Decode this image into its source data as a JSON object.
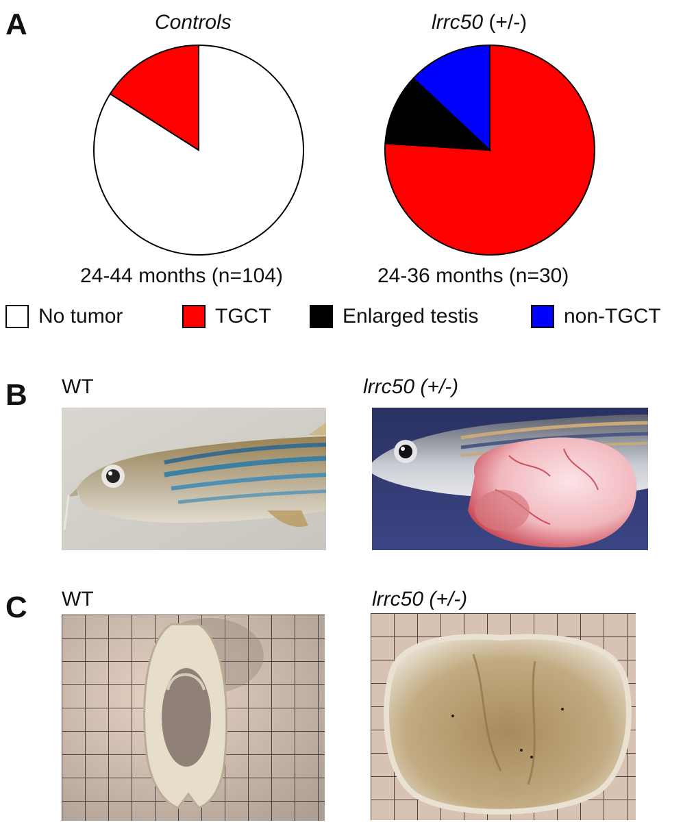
{
  "panels": {
    "a_letter": "A",
    "b_letter": "B",
    "c_letter": "C"
  },
  "chart_data": [
    {
      "type": "pie",
      "title": "Controls",
      "caption": "24-44 months (n=104)",
      "slices": [
        {
          "label": "No tumor",
          "value": 84,
          "color": "#ffffff"
        },
        {
          "label": "TGCT",
          "value": 16,
          "color": "#ff0000"
        }
      ]
    },
    {
      "type": "pie",
      "title_italic": "lrrc50",
      "title_rest": " (+/-)",
      "caption": "24-36 months (n=30)",
      "slices": [
        {
          "label": "TGCT",
          "value": 76,
          "color": "#ff0000"
        },
        {
          "label": "Enlarged testis",
          "value": 11,
          "color": "#000000"
        },
        {
          "label": "non-TGCT",
          "value": 13,
          "color": "#0000ff"
        }
      ]
    }
  ],
  "legend": [
    {
      "label": "No tumor",
      "color": "#ffffff"
    },
    {
      "label": "TGCT",
      "color": "#ff0000"
    },
    {
      "label": "Enlarged testis",
      "color": "#000000"
    },
    {
      "label": "non-TGCT",
      "color": "#0000ff"
    }
  ],
  "panel_b": {
    "left_label": "WT",
    "right_label": "lrrc50 (+/-)"
  },
  "panel_c": {
    "left_label": "WT",
    "right_label": "lrrc50 (+/-)"
  }
}
